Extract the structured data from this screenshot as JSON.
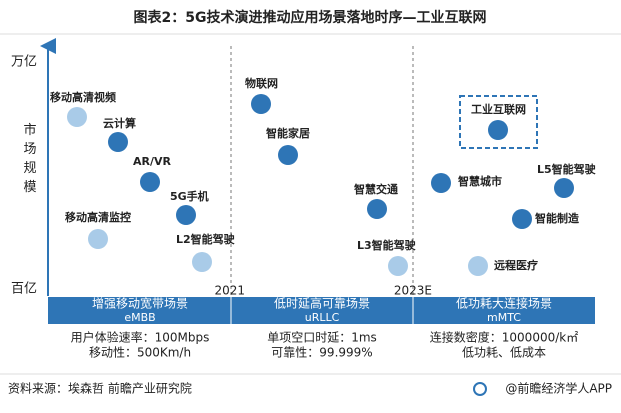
{
  "title": "图表2：5G技术演进推动应用场景落地时序—工业互联网",
  "axis": {
    "top": "万亿",
    "bottom": "百亿",
    "title": "市场规模"
  },
  "years": [
    "2021",
    "2023E"
  ],
  "scenarios": [
    {
      "name": "增强移动宽带场景",
      "code": "eMBB",
      "notes": [
        "用户体验速率：100Mbps",
        "移动性：500Km/h"
      ]
    },
    {
      "name": "低时延高可靠场景",
      "code": "uRLLC",
      "notes": [
        "单项空口时延：1ms",
        "可靠性：99.999%"
      ]
    },
    {
      "name": "低功耗大连接场景",
      "code": "mMTC",
      "notes": [
        "连接数密度：1000000/k㎡",
        "低功耗、低成本"
      ]
    }
  ],
  "applications": [
    "移动高清视频",
    "云计算",
    "AR/VR",
    "5G手机",
    "移动高清监控",
    "L2智能驾驶",
    "物联网",
    "智能家居",
    "智慧交通",
    "L3智能驾驶",
    "工业互联网",
    "智慧城市",
    "L5智能驾驶",
    "智能制造",
    "远程医疗"
  ],
  "footer": {
    "source": "资料来源：埃森哲 前瞻产业研究院",
    "brand": "@前瞻经济学人APP"
  }
}
